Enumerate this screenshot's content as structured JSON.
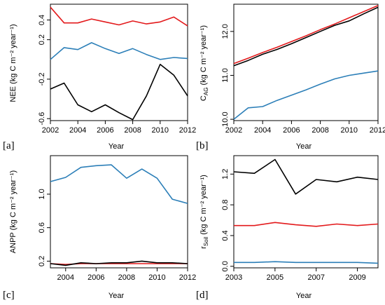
{
  "chart_data": [
    {
      "panel_label": "[a]",
      "type": "line",
      "xlabel": "Year",
      "ylabel": "NEE (kg C m⁻² year⁻¹)",
      "xlim": [
        2002,
        2012
      ],
      "ylim": [
        -0.62,
        0.56
      ],
      "xticks": [
        2002,
        2004,
        2006,
        2008,
        2010,
        2012
      ],
      "yticks": [
        -0.6,
        -0.2,
        0.2,
        0.4
      ],
      "ytick_labels": [
        "-0.6",
        "-0.2",
        "0.2",
        "0.4"
      ],
      "x": [
        2002,
        2003,
        2004,
        2005,
        2006,
        2007,
        2008,
        2009,
        2010,
        2011,
        2012
      ],
      "series": [
        {
          "color": "#e31a1c",
          "values": [
            0.53,
            0.37,
            0.37,
            0.41,
            0.38,
            0.35,
            0.39,
            0.36,
            0.38,
            0.43,
            0.34
          ]
        },
        {
          "color": "#2c7fb8",
          "values": [
            0.0,
            0.12,
            0.1,
            0.17,
            0.11,
            0.06,
            0.11,
            0.05,
            0.0,
            0.02,
            0.01
          ]
        },
        {
          "color": "#000000",
          "values": [
            -0.3,
            -0.24,
            -0.46,
            -0.53,
            -0.46,
            -0.54,
            -0.61,
            -0.37,
            -0.05,
            -0.16,
            -0.37
          ]
        }
      ]
    },
    {
      "panel_label": "[b]",
      "type": "line",
      "xlabel": "Year",
      "ylabel": "C_AG (kg C m⁻² year⁻¹)",
      "ylabel_main": "C",
      "ylabel_sub": "AG",
      "ylabel_rest": " (kg C m⁻² year⁻¹)",
      "xlim": [
        2002,
        2012
      ],
      "ylim": [
        9.97,
        12.62
      ],
      "xticks": [
        2002,
        2004,
        2006,
        2008,
        2010,
        2012
      ],
      "yticks": [
        10.0,
        11.0,
        12.0
      ],
      "ytick_labels": [
        "10.0",
        "11.0",
        "12.0"
      ],
      "x": [
        2002,
        2003,
        2004,
        2005,
        2006,
        2007,
        2008,
        2009,
        2010,
        2011,
        2012
      ],
      "series": [
        {
          "color": "#e31a1c",
          "values": [
            11.27,
            11.39,
            11.52,
            11.64,
            11.77,
            11.9,
            12.04,
            12.17,
            12.31,
            12.45,
            12.59
          ]
        },
        {
          "color": "#000000",
          "values": [
            11.22,
            11.34,
            11.48,
            11.59,
            11.72,
            11.86,
            12.0,
            12.14,
            12.24,
            12.4,
            12.55
          ]
        },
        {
          "color": "#2c7fb8",
          "values": [
            10.0,
            10.26,
            10.29,
            10.43,
            10.55,
            10.67,
            10.8,
            10.92,
            11.0,
            11.05,
            11.1
          ]
        }
      ]
    },
    {
      "panel_label": "[c]",
      "type": "line",
      "xlabel": "Year",
      "ylabel": "ANPP (kg C m⁻² year⁻¹)",
      "xlim": [
        2003,
        2012
      ],
      "ylim": [
        0.12,
        1.46
      ],
      "xticks": [
        2004,
        2006,
        2008,
        2010,
        2012
      ],
      "yticks": [
        0.2,
        0.6,
        1.0
      ],
      "ytick_labels": [
        "0.2",
        "0.6",
        "1.0"
      ],
      "x": [
        2003,
        2004,
        2005,
        2006,
        2007,
        2008,
        2009,
        2010,
        2011,
        2012
      ],
      "series": [
        {
          "color": "#2c7fb8",
          "values": [
            1.15,
            1.2,
            1.32,
            1.34,
            1.35,
            1.19,
            1.3,
            1.19,
            0.94,
            0.89
          ]
        },
        {
          "color": "#e31a1c",
          "values": [
            0.17,
            0.16,
            0.17,
            0.17,
            0.17,
            0.17,
            0.17,
            0.17,
            0.17,
            0.17
          ]
        },
        {
          "color": "#000000",
          "values": [
            0.17,
            0.15,
            0.18,
            0.17,
            0.18,
            0.18,
            0.2,
            0.18,
            0.18,
            0.17
          ]
        }
      ]
    },
    {
      "panel_label": "[d]",
      "type": "line",
      "xlabel": "Year",
      "ylabel": "r_Soil (kg C m⁻² year⁻¹)",
      "ylabel_main": "r",
      "ylabel_sub": "Soil",
      "ylabel_rest": " (kg C m⁻² year⁻¹)",
      "xlim": [
        2003,
        2010
      ],
      "ylim": [
        -0.02,
        1.44
      ],
      "xticks": [
        2003,
        2005,
        2007,
        2009
      ],
      "yticks": [
        0.0,
        0.4,
        0.8,
        1.2
      ],
      "ytick_labels": [
        "0.0",
        "0.4",
        "0.8",
        "1.2"
      ],
      "x": [
        2003,
        2004,
        2005,
        2006,
        2007,
        2008,
        2009,
        2010
      ],
      "series": [
        {
          "color": "#000000",
          "values": [
            1.23,
            1.21,
            1.39,
            0.94,
            1.13,
            1.1,
            1.16,
            1.13
          ]
        },
        {
          "color": "#e31a1c",
          "values": [
            0.53,
            0.53,
            0.57,
            0.54,
            0.52,
            0.55,
            0.53,
            0.55
          ]
        },
        {
          "color": "#2c7fb8",
          "values": [
            0.05,
            0.05,
            0.06,
            0.05,
            0.05,
            0.05,
            0.05,
            0.04
          ]
        }
      ]
    }
  ]
}
